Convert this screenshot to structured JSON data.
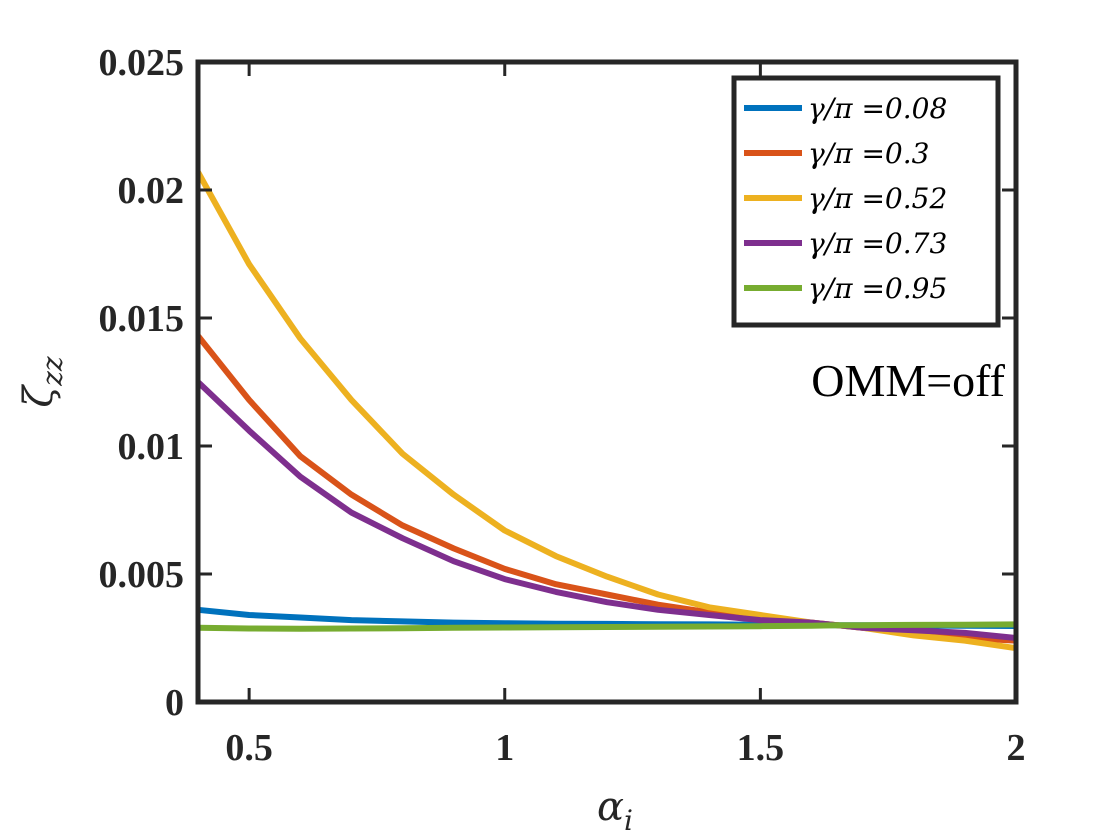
{
  "chart_data": {
    "type": "line",
    "title": "",
    "xlabel": "α",
    "xlabel_sub": "i",
    "ylabel": "ζ",
    "ylabel_sub": "zz",
    "xlim": [
      0.4,
      2.0
    ],
    "ylim": [
      0,
      0.025
    ],
    "xticks": [
      0.5,
      1,
      1.5,
      2
    ],
    "xtick_labels": [
      "0.5",
      "1",
      "1.5",
      "2"
    ],
    "yticks": [
      0,
      0.005,
      0.01,
      0.015,
      0.02,
      0.025
    ],
    "ytick_labels": [
      "0",
      "0.005",
      "0.01",
      "0.015",
      "0.02",
      "0.025"
    ],
    "grid": false,
    "legend_position": "top-right",
    "annotation": "OMM=off",
    "x": [
      0.4,
      0.5,
      0.6,
      0.7,
      0.8,
      0.9,
      1.0,
      1.1,
      1.2,
      1.3,
      1.4,
      1.5,
      1.6,
      1.65,
      1.7,
      1.8,
      1.9,
      2.0
    ],
    "series": [
      {
        "name": "γ/π =0.08",
        "color": "#0072BD",
        "values": [
          0.0036,
          0.0034,
          0.0033,
          0.0032,
          0.00315,
          0.0031,
          0.00308,
          0.00306,
          0.00305,
          0.00304,
          0.00303,
          0.00302,
          0.00301,
          0.003,
          0.003,
          0.00299,
          0.00298,
          0.00297
        ]
      },
      {
        "name": "γ/π =0.3",
        "color": "#D95319",
        "values": [
          0.0143,
          0.0118,
          0.0096,
          0.0081,
          0.0069,
          0.006,
          0.0052,
          0.0046,
          0.0042,
          0.0038,
          0.0035,
          0.0033,
          0.0031,
          0.003,
          0.0029,
          0.0027,
          0.0025,
          0.0024
        ]
      },
      {
        "name": "γ/π =0.52",
        "color": "#EDB120",
        "values": [
          0.0207,
          0.0171,
          0.0142,
          0.0118,
          0.0097,
          0.0081,
          0.0067,
          0.0057,
          0.0049,
          0.0042,
          0.0037,
          0.0034,
          0.0031,
          0.003,
          0.0029,
          0.0026,
          0.0024,
          0.0021
        ]
      },
      {
        "name": "γ/π =0.73",
        "color": "#7E2F8E",
        "values": [
          0.0125,
          0.0106,
          0.0088,
          0.0074,
          0.0064,
          0.0055,
          0.0048,
          0.0043,
          0.0039,
          0.0036,
          0.0034,
          0.0032,
          0.0031,
          0.003,
          0.0029,
          0.0028,
          0.0027,
          0.0025
        ]
      },
      {
        "name": "γ/π =0.95",
        "color": "#77AC30",
        "values": [
          0.0029,
          0.00287,
          0.00286,
          0.00287,
          0.00288,
          0.0029,
          0.00291,
          0.00292,
          0.00293,
          0.00294,
          0.00295,
          0.00296,
          0.00298,
          0.003,
          0.003,
          0.00301,
          0.00302,
          0.00303
        ]
      }
    ]
  }
}
